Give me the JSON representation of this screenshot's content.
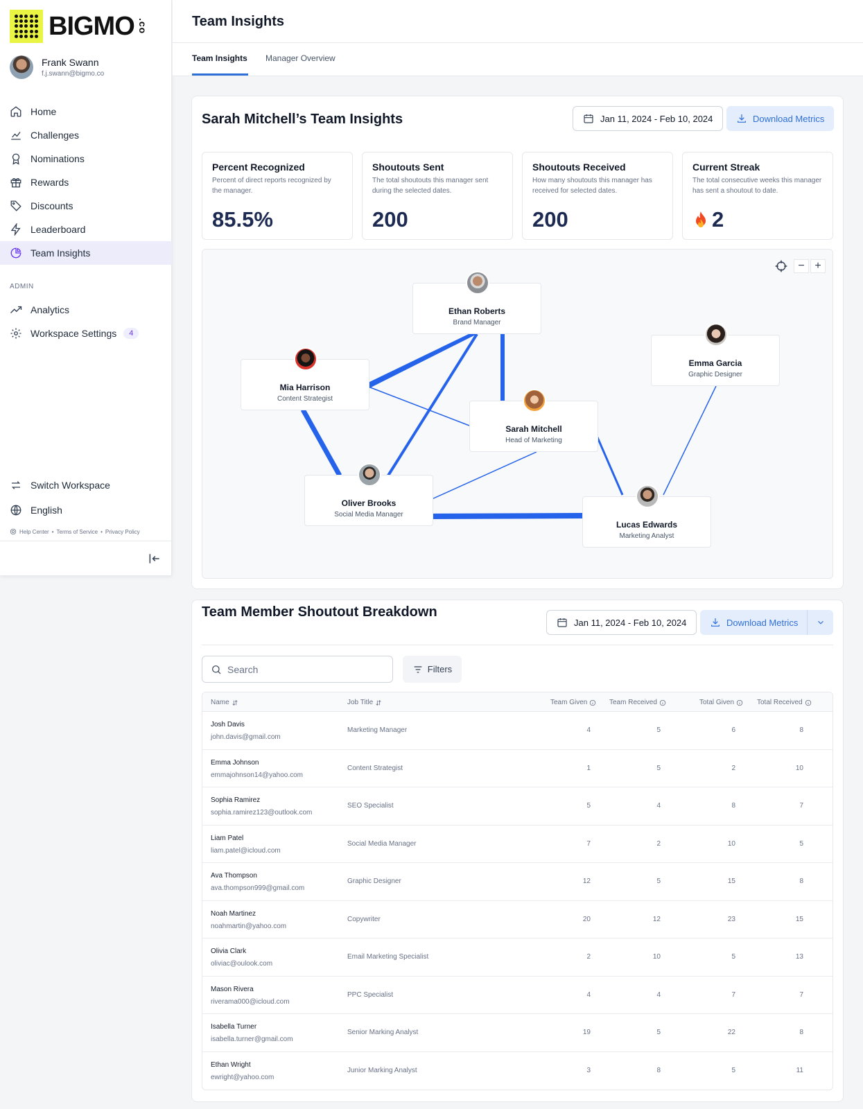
{
  "brand": {
    "name": "BIGMO",
    "suffix": ".co",
    "accent": "#e9f542"
  },
  "user": {
    "name": "Frank Swann",
    "email": "f.j.swann@bigmo.co"
  },
  "nav": [
    {
      "label": "Home",
      "icon": "home-icon"
    },
    {
      "label": "Challenges",
      "icon": "chart-icon"
    },
    {
      "label": "Nominations",
      "icon": "award-icon"
    },
    {
      "label": "Rewards",
      "icon": "gift-icon"
    },
    {
      "label": "Discounts",
      "icon": "tag-icon"
    },
    {
      "label": "Leaderboard",
      "icon": "bolt-icon"
    },
    {
      "label": "Team Insights",
      "icon": "pie-icon",
      "active": true
    }
  ],
  "admin": {
    "section_label": "ADMIN",
    "items": [
      {
        "label": "Analytics",
        "icon": "trend-icon"
      },
      {
        "label": "Workspace Settings",
        "icon": "gear-icon",
        "badge": "4"
      }
    ]
  },
  "bottom_nav": [
    {
      "label": "Switch Workspace",
      "icon": "switch-icon"
    },
    {
      "label": "English",
      "icon": "globe-icon"
    }
  ],
  "footer": {
    "help": "Help Center",
    "terms": "Terms of Service",
    "privacy": "Privacy Policy",
    "sep": "•"
  },
  "header": {
    "title": "Team Insights"
  },
  "tabs": [
    {
      "label": "Team Insights",
      "active": true
    },
    {
      "label": "Manager Overview",
      "active": false
    }
  ],
  "insights": {
    "title": "Sarah Mitchell’s Team Insights",
    "date_range": "Jan 11, 2024 - Feb 10, 2024",
    "download_label": "Download Metrics",
    "stats": [
      {
        "title": "Percent Recognized",
        "desc": "Percent of direct reports recognized by the manager.",
        "value": "85.5%"
      },
      {
        "title": "Shoutouts Sent",
        "desc": "The total shoutouts this manager sent during the selected dates.",
        "value": "200"
      },
      {
        "title": "Shoutouts Received",
        "desc": "How many shoutouts this manager has received for selected dates.",
        "value": "200"
      },
      {
        "title": "Current Streak",
        "desc": "The total consecutive weeks this manager has sent a shoutout to date.",
        "value": "2",
        "icon": "flame-icon"
      }
    ],
    "network": {
      "zoom_controls": {
        "recenter_icon": "crosshair-icon",
        "zoom_out": "−",
        "zoom_in": "+"
      },
      "nodes": [
        {
          "id": "ethan",
          "name": "Ethan Roberts",
          "role": "Brand Manager"
        },
        {
          "id": "mia",
          "name": "Mia Harrison",
          "role": "Content Strategist"
        },
        {
          "id": "emma",
          "name": "Emma Garcia",
          "role": "Graphic Designer"
        },
        {
          "id": "sarah",
          "name": "Sarah Mitchell",
          "role": "Head of Marketing"
        },
        {
          "id": "oliver",
          "name": "Oliver Brooks",
          "role": "Social Media Manager"
        },
        {
          "id": "lucas",
          "name": "Lucas Edwards",
          "role": "Marketing Analyst"
        }
      ],
      "edge_color": "#2563eb"
    }
  },
  "breakdown": {
    "title": "Team Member Shoutout Breakdown",
    "date_range": "Jan 11, 2024 - Feb 10, 2024",
    "download_label": "Download Metrics",
    "search_placeholder": "Search",
    "filters_label": "Filters",
    "columns": {
      "name": "Name",
      "job": "Job Title",
      "team_given": "Team Given",
      "team_received": "Team Received",
      "total_given": "Total Given",
      "total_received": "Total Received"
    },
    "rows": [
      {
        "name": "Josh Davis",
        "email": "john.davis@gmail.com",
        "job": "Marketing Manager",
        "team_given": "4",
        "team_received": "5",
        "total_given": "6",
        "total_received": "8"
      },
      {
        "name": "Emma Johnson",
        "email": "emmajohnson14@yahoo.com",
        "job": "Content Strategist",
        "team_given": "1",
        "team_received": "5",
        "total_given": "2",
        "total_received": "10"
      },
      {
        "name": "Sophia Ramirez",
        "email": "sophia.ramirez123@outlook.com",
        "job": "SEO Specialist",
        "team_given": "5",
        "team_received": "4",
        "total_given": "8",
        "total_received": "7"
      },
      {
        "name": "Liam Patel",
        "email": "liam.patel@icloud.com",
        "job": "Social Media Manager",
        "team_given": "7",
        "team_received": "2",
        "total_given": "10",
        "total_received": "5"
      },
      {
        "name": "Ava Thompson",
        "email": "ava.thompson999@gmail.com",
        "job": "Graphic Designer",
        "team_given": "12",
        "team_received": "5",
        "total_given": "15",
        "total_received": "8"
      },
      {
        "name": "Noah Martinez",
        "email": "noahmartin@yahoo.com",
        "job": "Copywriter",
        "team_given": "20",
        "team_received": "12",
        "total_given": "23",
        "total_received": "15"
      },
      {
        "name": "Olivia Clark",
        "email": "oliviac@oulook.com",
        "job": "Email Marketing Specialist",
        "team_given": "2",
        "team_received": "10",
        "total_given": "5",
        "total_received": "13"
      },
      {
        "name": "Mason Rivera",
        "email": "riverama000@icloud.com",
        "job": "PPC Specialist",
        "team_given": "4",
        "team_received": "4",
        "total_given": "7",
        "total_received": "7"
      },
      {
        "name": "Isabella Turner",
        "email": "isabella.turner@gmail.com",
        "job": "Senior Marking Analyst",
        "team_given": "19",
        "team_received": "5",
        "total_given": "22",
        "total_received": "8"
      },
      {
        "name": "Ethan Wright",
        "email": "ewright@yahoo.com",
        "job": "Junior Marking Analyst",
        "team_given": "3",
        "team_received": "8",
        "total_given": "5",
        "total_received": "11"
      }
    ]
  }
}
